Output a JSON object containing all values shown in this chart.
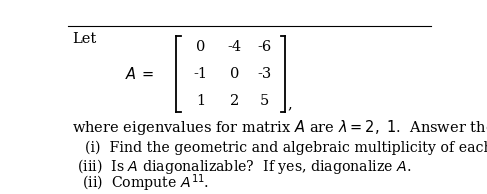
{
  "bg_color": "#ffffff",
  "text_color": "#000000",
  "matrix_rows": [
    [
      "0",
      "-4",
      "-6"
    ],
    [
      "-1",
      "0",
      "-3"
    ],
    [
      "1",
      "2",
      "5"
    ]
  ],
  "font_size_main": 10.5
}
